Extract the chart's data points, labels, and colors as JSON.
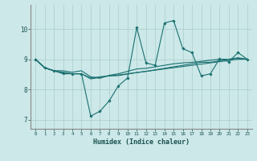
{
  "xlabel": "Humidex (Indice chaleur)",
  "background_color": "#cce8e8",
  "grid_color": "#aacccc",
  "line_color": "#1a7070",
  "xlim": [
    -0.5,
    23.5
  ],
  "ylim": [
    6.7,
    10.8
  ],
  "xticks": [
    0,
    1,
    2,
    3,
    4,
    5,
    6,
    7,
    8,
    9,
    10,
    11,
    12,
    13,
    14,
    15,
    16,
    17,
    18,
    19,
    20,
    21,
    22,
    23
  ],
  "yticks": [
    7,
    8,
    9,
    10
  ],
  "series": [
    [
      9.0,
      8.72,
      8.62,
      8.62,
      8.57,
      8.62,
      8.42,
      8.37,
      8.47,
      8.52,
      8.6,
      8.68,
      8.7,
      8.75,
      8.8,
      8.85,
      8.88,
      8.9,
      8.93,
      8.97,
      9.0,
      9.0,
      9.03,
      9.0
    ],
    [
      9.0,
      8.72,
      8.62,
      8.55,
      8.52,
      8.52,
      7.12,
      7.28,
      7.62,
      8.12,
      8.38,
      10.05,
      8.88,
      8.8,
      10.2,
      10.28,
      9.35,
      9.22,
      8.45,
      8.52,
      9.02,
      8.92,
      9.22,
      9.0
    ],
    [
      9.0,
      8.72,
      8.62,
      8.52,
      8.52,
      8.52,
      8.35,
      8.4,
      8.45,
      8.46,
      8.51,
      8.56,
      8.6,
      8.65,
      8.7,
      8.75,
      8.8,
      8.85,
      8.9,
      8.9,
      8.95,
      9.0,
      9.05,
      9.0
    ],
    [
      9.0,
      8.72,
      8.62,
      8.57,
      8.52,
      8.52,
      8.38,
      8.42,
      8.45,
      8.48,
      8.52,
      8.56,
      8.6,
      8.64,
      8.68,
      8.72,
      8.76,
      8.8,
      8.84,
      8.88,
      8.92,
      8.96,
      9.0,
      9.0
    ]
  ]
}
